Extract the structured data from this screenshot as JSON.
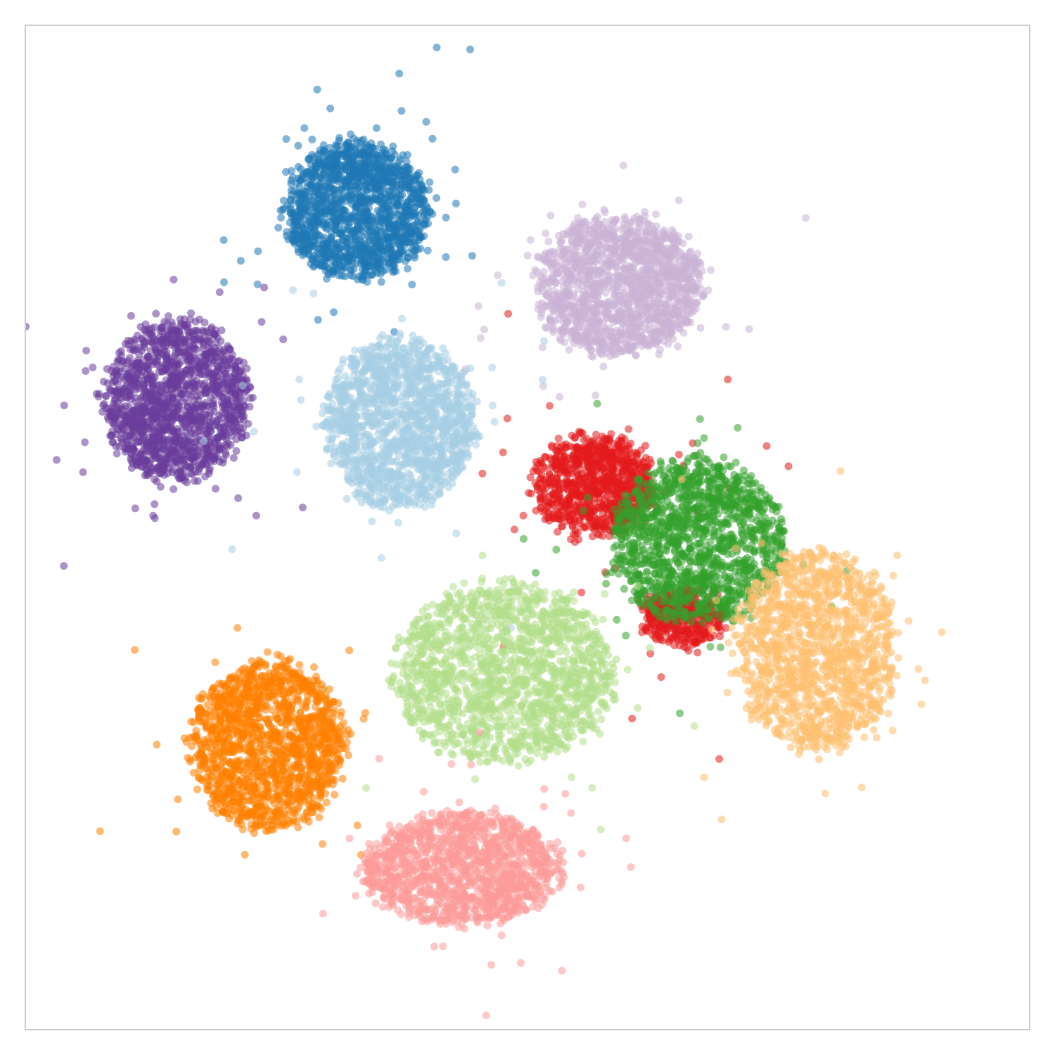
{
  "chart_data": {
    "type": "scatter",
    "title": "",
    "xlabel": "",
    "ylabel": "",
    "xlim": [
      0,
      100
    ],
    "ylim": [
      0,
      100
    ],
    "grid": false,
    "axes_visible": false,
    "legend": "none",
    "point_opacity": 0.55,
    "series": [
      {
        "color": "#1f78b4",
        "center": [
          32.0,
          83.5
        ],
        "spread": [
          7.5,
          7.2
        ],
        "count": 1500
      },
      {
        "color": "#cab2d6",
        "center": [
          59.5,
          75.5
        ],
        "spread": [
          8.8,
          7.2
        ],
        "count": 1500
      },
      {
        "color": "#6a3d9a",
        "center": [
          13.0,
          63.5
        ],
        "spread": [
          7.5,
          8.3
        ],
        "count": 1500
      },
      {
        "color": "#a6cee3",
        "center": [
          36.5,
          61.0
        ],
        "spread": [
          7.8,
          9.0
        ],
        "count": 1500
      },
      {
        "color": "#e31a1c",
        "center": [
          57.0,
          54.5
        ],
        "spread": [
          6.2,
          5.3
        ],
        "count": 900
      },
      {
        "color": "#e31a1c",
        "center": [
          66.5,
          40.5
        ],
        "spread": [
          4.5,
          2.8
        ],
        "count": 400
      },
      {
        "color": "#33a02c",
        "center": [
          68.0,
          48.5
        ],
        "spread": [
          9.0,
          8.5
        ],
        "count": 1400
      },
      {
        "color": "#fdbf6f",
        "center": [
          80.5,
          37.0
        ],
        "spread": [
          8.5,
          10.5
        ],
        "count": 1400
      },
      {
        "color": "#b2df8a",
        "center": [
          47.5,
          34.5
        ],
        "spread": [
          11.5,
          9.5
        ],
        "count": 1600
      },
      {
        "color": "#ff7f00",
        "center": [
          22.5,
          27.0
        ],
        "spread": [
          8.0,
          8.8
        ],
        "count": 1500
      },
      {
        "color": "#fb9a99",
        "center": [
          43.0,
          14.0
        ],
        "spread": [
          10.5,
          5.8
        ],
        "count": 1400
      }
    ]
  }
}
